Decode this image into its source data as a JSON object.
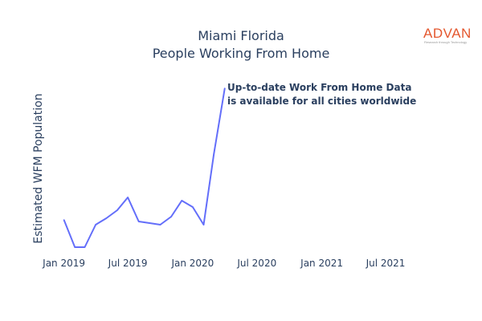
{
  "chart_data": {
    "type": "line",
    "title": "Miami Florida",
    "subtitle": "People Working From Home",
    "ylabel": "Estimated WFM Population",
    "xlabel": "",
    "x_tick_labels": [
      "Jan 2019",
      "Jul 2019",
      "Jan 2020",
      "Jul 2020",
      "Jan 2021",
      "Jul 2021"
    ],
    "x_range": [
      "2018-12-01",
      "2021-09-30"
    ],
    "y_axis_labels_shown": false,
    "y_range_relative": [
      0,
      100
    ],
    "grid": false,
    "line_color": "#636efa",
    "series": [
      {
        "x": [
          "2019-01-01",
          "2019-02-01",
          "2019-03-01",
          "2019-04-01",
          "2019-05-01",
          "2019-06-01",
          "2019-07-01",
          "2019-08-01",
          "2019-09-01",
          "2019-10-01",
          "2019-11-01",
          "2019-12-01",
          "2020-01-01",
          "2020-02-01",
          "2020-03-01",
          "2020-04-01"
        ],
        "y": [
          18,
          1,
          1,
          15,
          19,
          24,
          32,
          17,
          16,
          15,
          20,
          30,
          26,
          15,
          59,
          100
        ]
      }
    ]
  },
  "annotation": {
    "line1": "Up-to-date Work From Home Data",
    "line2": "is available for all cities worldwide"
  },
  "logo": {
    "word": "ADVAN",
    "tagline": "Research through Technology",
    "color": "#e4572e"
  }
}
